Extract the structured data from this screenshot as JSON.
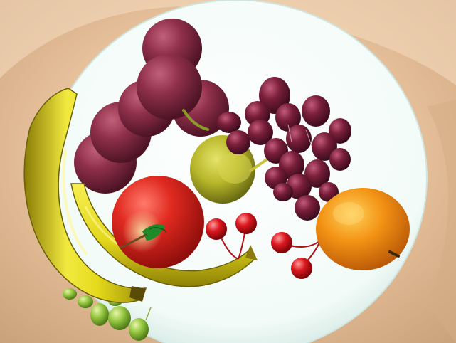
{
  "scene": {
    "description_free": true,
    "objects": [
      {
        "name": "plate",
        "color": "#f4fbf9"
      },
      {
        "name": "bananas",
        "color": "#e8dd1e"
      },
      {
        "name": "plums",
        "color": "#8c2f48"
      },
      {
        "name": "grapes",
        "color": "#7a1f3a"
      },
      {
        "name": "pear",
        "color": "#b8b62a"
      },
      {
        "name": "apple",
        "color": "#d8201e"
      },
      {
        "name": "cherries",
        "color": "#d61822"
      },
      {
        "name": "orange",
        "color": "#f08a10"
      },
      {
        "name": "green-grapes",
        "color": "#8cc23a"
      }
    ],
    "background_color": "#e9c9a6"
  }
}
